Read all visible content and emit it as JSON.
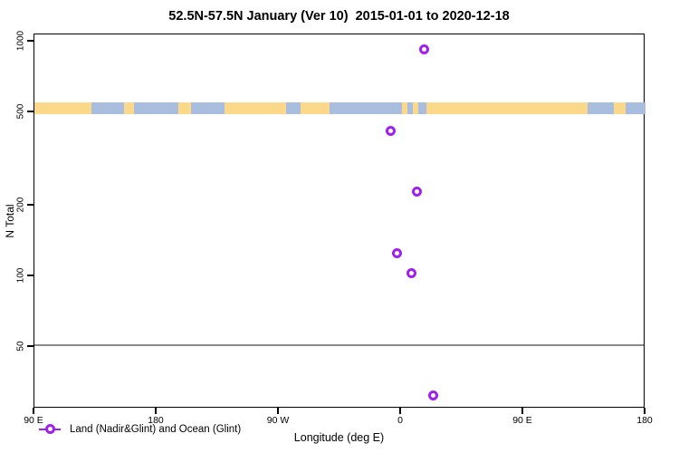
{
  "title": "52.5N-57.5N January (Ver 10)  2015-01-01 to 2020-12-18",
  "chart_data": {
    "type": "scatter",
    "title": "52.5N-57.5N January (Ver 10)  2015-01-01 to 2020-12-18",
    "xlabel": "Longitude (deg E)",
    "ylabel": "N Total",
    "y_scale": "log",
    "grid": "off",
    "x_axis": {
      "range_display_deg": [
        90,
        540
      ],
      "ticks": [
        {
          "display_lon": 90,
          "label": "90 E"
        },
        {
          "display_lon": 180,
          "label": "180"
        },
        {
          "display_lon": 270,
          "label": "90 W"
        },
        {
          "display_lon": 360,
          "label": "0"
        },
        {
          "display_lon": 450,
          "label": "90 E"
        },
        {
          "display_lon": 540,
          "label": "180"
        }
      ]
    },
    "y_axis": {
      "ticks": [
        1000,
        500,
        200,
        100,
        50
      ],
      "range": [
        27,
        1075
      ]
    },
    "reference_line": {
      "value": 50,
      "color": "#8a8a8a"
    },
    "points": [
      {
        "lon_deg_e": 17,
        "n_total": 930
      },
      {
        "lon_deg_e": -7.5,
        "n_total": 415
      },
      {
        "lon_deg_e": 11.5,
        "n_total": 230
      },
      {
        "lon_deg_e": -3,
        "n_total": 125
      },
      {
        "lon_deg_e": 7.5,
        "n_total": 103
      },
      {
        "lon_deg_e": 23.5,
        "n_total": 31
      }
    ],
    "point_color": "#A020F0",
    "map_strip": {
      "top_n": 546,
      "bottom_n": 486,
      "ocean_color": "#A9BEDE",
      "land_color": "#FCD98A",
      "land_segments_display_lon": [
        [
          90,
          132
        ],
        [
          156,
          163
        ],
        [
          196,
          205
        ],
        [
          230,
          275.5
        ],
        [
          286,
          307
        ],
        [
          360.5,
          364.5
        ],
        [
          368.5,
          372.5
        ],
        [
          378.5,
          497.5
        ],
        [
          516.5,
          525.5
        ]
      ]
    },
    "legend": {
      "label": "Land (Nadir&Glint) and Ocean (Glint)",
      "marker_color": "#A020F0",
      "position": "bottom-left-inside"
    }
  }
}
